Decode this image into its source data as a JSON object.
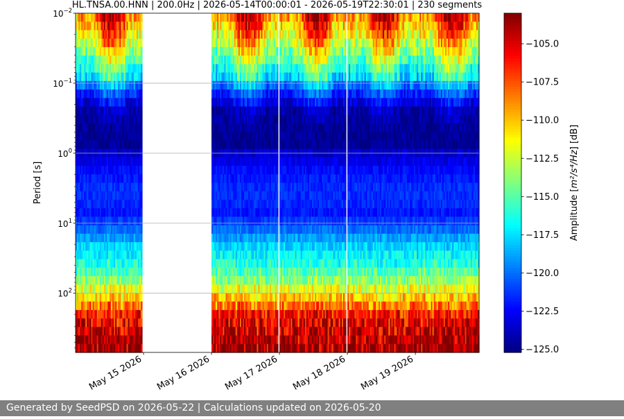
{
  "chart_data": {
    "type": "heatmap",
    "title": "HL.TNSA.00.HNN | 200.0Hz | 2026-05-14T00:00:01 - 2026-05-19T22:30:01 | 230 segments",
    "ylabel": "Period [s]",
    "y_scale": "log",
    "y_inverted": true,
    "ylim": [
      0.01,
      700
    ],
    "yticks": [
      0.01,
      0.1,
      1,
      10,
      100
    ],
    "ytick_labels": [
      {
        "base": "10",
        "exp": "−2"
      },
      {
        "base": "10",
        "exp": "−1"
      },
      {
        "base": "10",
        "exp": "0"
      },
      {
        "base": "10",
        "exp": "1"
      },
      {
        "base": "10",
        "exp": "2"
      }
    ],
    "xlim": [
      "2026-05-14T00:00:01",
      "2026-05-19T22:30:01"
    ],
    "xticks": [
      "2026-05-15",
      "2026-05-16",
      "2026-05-17",
      "2026-05-18",
      "2026-05-19"
    ],
    "xtick_labels": [
      "May 15 2026",
      "May 16 2026",
      "May 17 2026",
      "May 18 2026",
      "May 19 2026"
    ],
    "data_gaps": [
      [
        "2026-05-14T23:30:00",
        "2026-05-16T00:00:00"
      ],
      [
        "2026-05-16T23:20:00",
        "2026-05-17T00:00:00"
      ],
      [
        "2026-05-17T23:40:00",
        "2026-05-18T00:00:00"
      ],
      [
        "2026-05-18T23:50:00",
        "2026-05-19T00:00:00"
      ]
    ],
    "grid": true,
    "grid_axis": "y",
    "colormap": "jet",
    "colorbar": {
      "label_prefix": "Amplitude [",
      "label_math": "m²/s⁴/Hz",
      "label_suffix": "] [dB]",
      "vmin": -125.2,
      "vmax": -103.0,
      "ticks": [
        -105.0,
        -107.5,
        -110.0,
        -112.5,
        -115.0,
        -117.5,
        -120.0,
        -122.5,
        -125.0
      ],
      "tick_labels": [
        "−105.0",
        "−107.5",
        "−110.0",
        "−112.5",
        "−115.0",
        "−117.5",
        "−120.0",
        "−122.5",
        "−125.0"
      ]
    },
    "psd_profile": {
      "period_s": [
        0.01,
        0.02,
        0.05,
        0.08,
        0.12,
        0.17,
        0.25,
        0.5,
        0.9,
        1.0,
        2.0,
        3.0,
        5.0,
        7.0,
        10.0,
        20.0,
        40.0,
        70.0,
        100.0,
        150.0,
        200.0,
        300.0,
        500.0,
        700.0
      ],
      "amplitude_db": [
        -109,
        -112,
        -116,
        -118,
        -121,
        -123,
        -124.5,
        -124.8,
        -124.8,
        -123.5,
        -122,
        -121.5,
        -121.5,
        -122,
        -121,
        -118,
        -116,
        -113.5,
        -111,
        -108.5,
        -106,
        -104.8,
        -103.8,
        -103.5
      ]
    },
    "diurnal_noise": {
      "day_start_hour": 6,
      "day_end_hour": 20,
      "day_increase_db_at_short_periods": 6
    }
  },
  "footer": {
    "text": "Generated by SeedPSD on 2026-05-22 | Calculations updated on 2026-05-20"
  }
}
